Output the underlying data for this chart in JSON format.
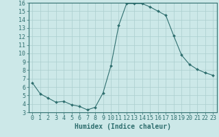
{
  "x": [
    0,
    1,
    2,
    3,
    4,
    5,
    6,
    7,
    8,
    9,
    10,
    11,
    12,
    13,
    14,
    15,
    16,
    17,
    18,
    19,
    20,
    21,
    22,
    23
  ],
  "y": [
    6.5,
    5.2,
    4.7,
    4.2,
    4.3,
    3.9,
    3.7,
    3.3,
    3.6,
    5.3,
    8.5,
    13.3,
    15.9,
    15.9,
    15.9,
    15.5,
    15.0,
    14.5,
    12.1,
    9.8,
    8.7,
    8.1,
    7.7,
    7.4
  ],
  "line_color": "#2e6e6e",
  "marker": "D",
  "marker_size": 2,
  "bg_color": "#cce8e8",
  "grid_color": "#aacece",
  "xlabel": "Humidex (Indice chaleur)",
  "ylim": [
    3,
    16
  ],
  "xlim": [
    -0.5,
    23.5
  ],
  "yticks": [
    3,
    4,
    5,
    6,
    7,
    8,
    9,
    10,
    11,
    12,
    13,
    14,
    15,
    16
  ],
  "xticks": [
    0,
    1,
    2,
    3,
    4,
    5,
    6,
    7,
    8,
    9,
    10,
    11,
    12,
    13,
    14,
    15,
    16,
    17,
    18,
    19,
    20,
    21,
    22,
    23
  ],
  "tick_color": "#2e6e6e",
  "label_color": "#2e6e6e",
  "spine_color": "#2e6e6e",
  "xlabel_fontsize": 7,
  "tick_fontsize": 6
}
